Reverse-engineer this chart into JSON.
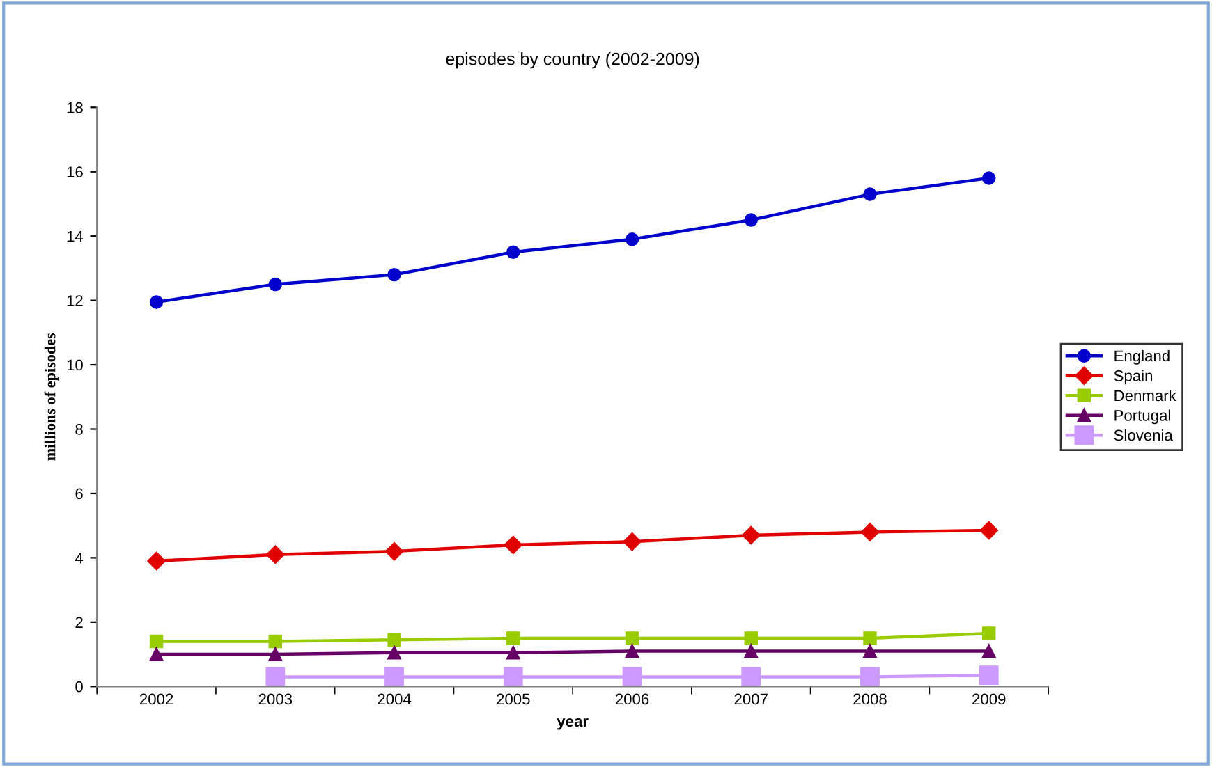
{
  "chart_data": {
    "type": "line",
    "title": "episodes by country (2002-2009)",
    "xlabel": "year",
    "ylabel": "millions of episodes",
    "categories": [
      "2002",
      "2003",
      "2004",
      "2005",
      "2006",
      "2007",
      "2008",
      "2009"
    ],
    "series": [
      {
        "name": "England",
        "color": "#0000cc",
        "marker": "circle",
        "values": [
          11.95,
          12.5,
          12.8,
          13.5,
          13.9,
          14.5,
          15.3,
          15.8
        ]
      },
      {
        "name": "Spain",
        "color": "#e00000",
        "marker": "diamond",
        "values": [
          3.9,
          4.1,
          4.2,
          4.4,
          4.5,
          4.7,
          4.8,
          4.85
        ]
      },
      {
        "name": "Denmark",
        "color": "#99cc00",
        "marker": "square",
        "values": [
          1.4,
          1.4,
          1.45,
          1.5,
          1.5,
          1.5,
          1.5,
          1.65
        ]
      },
      {
        "name": "Portugal",
        "color": "#660066",
        "marker": "triangle",
        "values": [
          1.0,
          1.0,
          1.05,
          1.05,
          1.1,
          1.1,
          1.1,
          1.1
        ]
      },
      {
        "name": "Slovenia",
        "color": "#cc99ff",
        "marker": "square",
        "values": [
          null,
          0.3,
          0.3,
          0.3,
          0.3,
          0.3,
          0.3,
          0.35
        ]
      }
    ],
    "ylim": [
      0,
      18
    ],
    "yticks": [
      0,
      2,
      4,
      6,
      8,
      10,
      12,
      14,
      16,
      18
    ],
    "grid": false,
    "legend": "right",
    "line_style": "solid"
  }
}
